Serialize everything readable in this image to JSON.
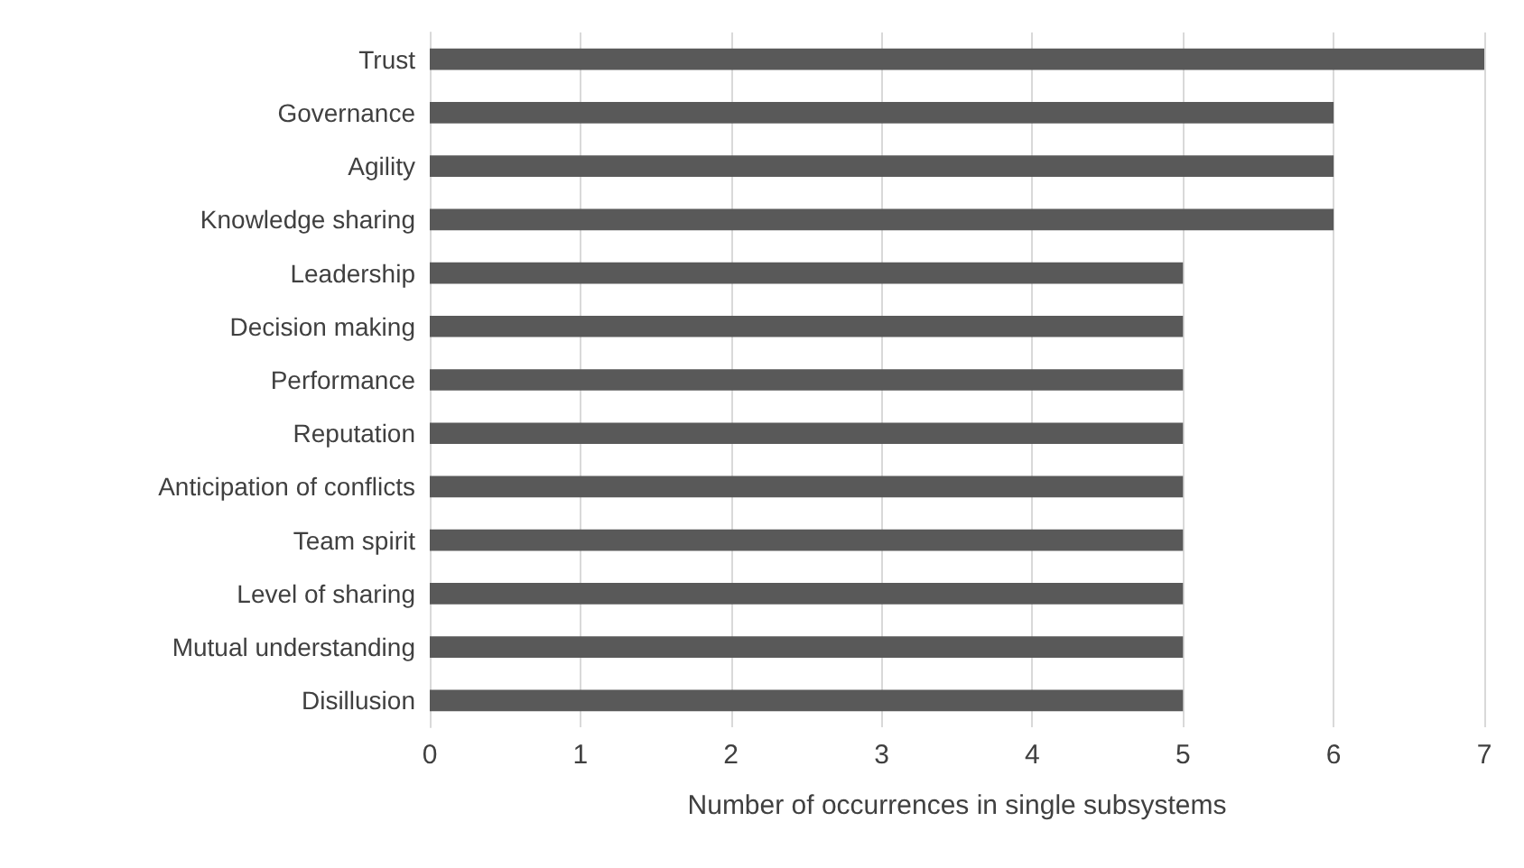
{
  "chart_data": {
    "type": "bar",
    "orientation": "horizontal",
    "xlabel": "Number of occurrences in single subsystems",
    "categories": [
      "Trust",
      "Governance",
      "Agility",
      "Knowledge sharing",
      "Leadership",
      "Decision making",
      "Performance",
      "Reputation",
      "Anticipation of conflicts",
      "Team spirit",
      "Level of sharing",
      "Mutual understanding",
      "Disillusion"
    ],
    "values": [
      7,
      6,
      6,
      6,
      5,
      5,
      5,
      5,
      5,
      5,
      5,
      5,
      5
    ],
    "color": "#595959",
    "xlim": [
      0,
      7
    ],
    "xticks": [
      0,
      1,
      2,
      3,
      4,
      5,
      6,
      7
    ],
    "grid": "x"
  }
}
